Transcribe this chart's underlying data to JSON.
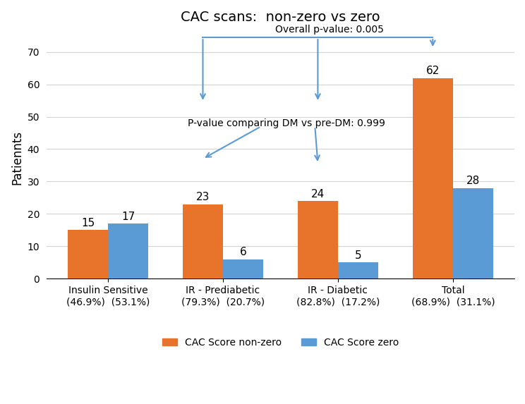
{
  "title": "CAC scans:  non-zero vs zero",
  "ylabel": "Patiennts",
  "categories": [
    "Insulin Sensitive\n(46.9%)  (53.1%)",
    "IR - Prediabetic\n(79.3%)  (20.7%)",
    "IR - Diabetic\n(82.8%)  (17.2%)",
    "Total\n(68.9%)  (31.1%)"
  ],
  "nonzero_values": [
    15,
    23,
    24,
    62
  ],
  "zero_values": [
    17,
    6,
    5,
    28
  ],
  "color_nonzero": "#E8732A",
  "color_zero": "#5B9BD5",
  "ylim": [
    0,
    75
  ],
  "yticks": [
    0,
    10,
    20,
    30,
    40,
    50,
    60,
    70
  ],
  "legend_labels": [
    "CAC Score non-zero",
    "CAC Score zero"
  ],
  "overall_pvalue_text": "Overall p-value: 0.005",
  "dm_pvalue_text": "P-value comparing DM vs pre-DM: 0.999",
  "bar_width": 0.35,
  "arrow_color": "#5B9BD5"
}
